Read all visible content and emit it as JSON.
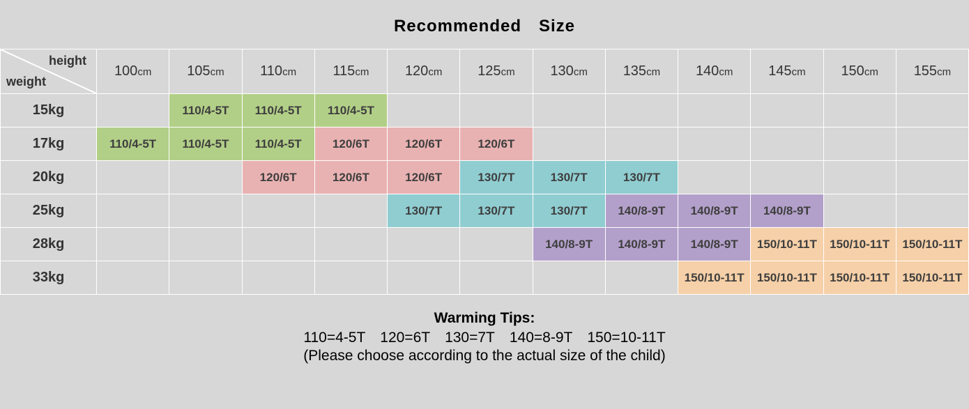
{
  "title": "Recommended Size",
  "corner": {
    "top_label": "height",
    "bottom_label": "weight"
  },
  "column_unit": "cm",
  "columns_num": [
    "100",
    "105",
    "110",
    "115",
    "120",
    "125",
    "130",
    "135",
    "140",
    "145",
    "150",
    "155"
  ],
  "row_unit": "kg",
  "rows_num": [
    "15",
    "17",
    "20",
    "25",
    "28",
    "33"
  ],
  "colors": {
    "bg": "#d7d7d7",
    "grid": "#ffffff",
    "green": "#b2cf87",
    "pink": "#e9b2b2",
    "teal": "#90cdd1",
    "purple": "#b3a0ca",
    "peach": "#f6d0a8",
    "cell_text": "#3e3e3e"
  },
  "labels": {
    "s110": "110/4-5T",
    "s120": "120/6T",
    "s130": "130/7T",
    "s140": "140/8-9T",
    "s150": "150/10-11T"
  },
  "fontsizes": {
    "title": 24,
    "header": 18,
    "row_header": 20,
    "cell": 17,
    "tips": 21
  },
  "grid": [
    [
      null,
      {
        "k": "s110",
        "c": "green"
      },
      {
        "k": "s110",
        "c": "green"
      },
      {
        "k": "s110",
        "c": "green"
      },
      null,
      null,
      null,
      null,
      null,
      null,
      null,
      null
    ],
    [
      {
        "k": "s110",
        "c": "green"
      },
      {
        "k": "s110",
        "c": "green"
      },
      {
        "k": "s110",
        "c": "green"
      },
      {
        "k": "s120",
        "c": "pink"
      },
      {
        "k": "s120",
        "c": "pink"
      },
      {
        "k": "s120",
        "c": "pink"
      },
      null,
      null,
      null,
      null,
      null,
      null
    ],
    [
      null,
      null,
      {
        "k": "s120",
        "c": "pink"
      },
      {
        "k": "s120",
        "c": "pink"
      },
      {
        "k": "s120",
        "c": "pink"
      },
      {
        "k": "s130",
        "c": "teal"
      },
      {
        "k": "s130",
        "c": "teal"
      },
      {
        "k": "s130",
        "c": "teal"
      },
      null,
      null,
      null,
      null
    ],
    [
      null,
      null,
      null,
      null,
      {
        "k": "s130",
        "c": "teal"
      },
      {
        "k": "s130",
        "c": "teal"
      },
      {
        "k": "s130",
        "c": "teal"
      },
      {
        "k": "s140",
        "c": "purple"
      },
      {
        "k": "s140",
        "c": "purple"
      },
      {
        "k": "s140",
        "c": "purple"
      },
      null,
      null
    ],
    [
      null,
      null,
      null,
      null,
      null,
      null,
      {
        "k": "s140",
        "c": "purple"
      },
      {
        "k": "s140",
        "c": "purple"
      },
      {
        "k": "s140",
        "c": "purple"
      },
      {
        "k": "s150",
        "c": "peach"
      },
      {
        "k": "s150",
        "c": "peach"
      },
      {
        "k": "s150",
        "c": "peach"
      }
    ],
    [
      null,
      null,
      null,
      null,
      null,
      null,
      null,
      null,
      {
        "k": "s150",
        "c": "peach"
      },
      {
        "k": "s150",
        "c": "peach"
      },
      {
        "k": "s150",
        "c": "peach"
      },
      {
        "k": "s150",
        "c": "peach"
      }
    ]
  ],
  "tips": {
    "title": "Warming Tips:",
    "line2": "110=4-5T 120=6T 130=7T 140=8-9T 150=10-11T",
    "line3": "(Please choose according to the actual size of the child)"
  }
}
